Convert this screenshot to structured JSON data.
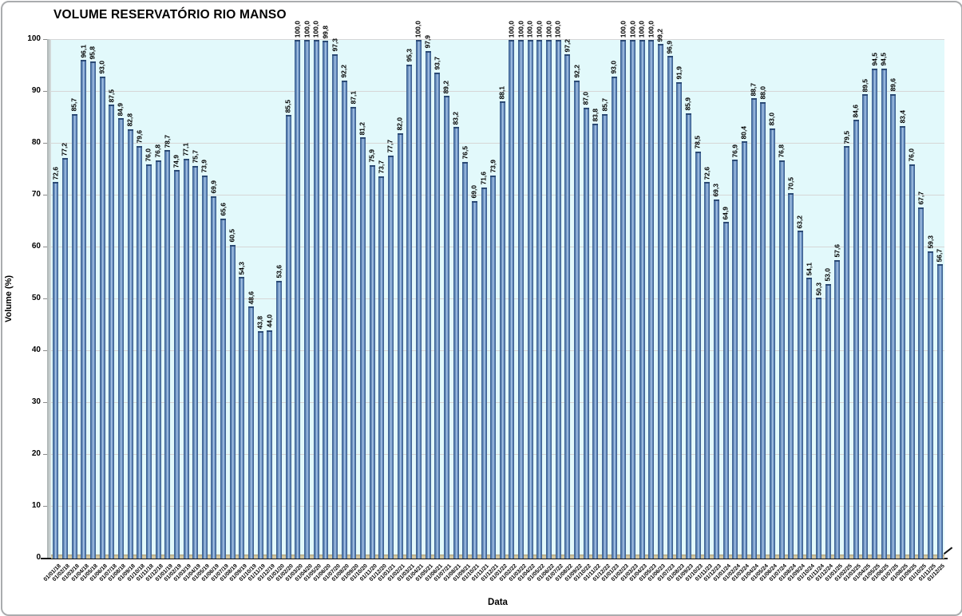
{
  "title": "VOLUME RESERVATÓRIO RIO MANSO",
  "colors": {
    "plot_background": "#e2f9fb",
    "gridline": "#d6d6d6",
    "bar_edge": "#2f4e7a",
    "bar_body": "#5b83b6",
    "bar_highlight": "#b9d2ee",
    "floor": "#cfc49e",
    "wall": "#c4cbcb",
    "axis": "#151515",
    "text": "#000000"
  },
  "chart_data": {
    "type": "bar",
    "title": "VOLUME RESERVATÓRIO RIO MANSO",
    "xlabel": "Data",
    "ylabel": "Volume (%)",
    "ylim": [
      0,
      100
    ],
    "y_ticks": [
      0,
      10,
      20,
      30,
      40,
      50,
      60,
      70,
      80,
      90,
      100
    ],
    "grid": true,
    "legend": "none",
    "value_labels": "rotated-90-above-bars",
    "decimal_separator": ",",
    "categories": [
      "01/01/18",
      "01/02/18",
      "01/03/18",
      "01/04/18",
      "01/05/18",
      "01/06/18",
      "01/07/18",
      "01/08/18",
      "01/09/18",
      "01/10/18",
      "01/11/18",
      "01/12/18",
      "01/01/19",
      "01/02/19",
      "01/03/19",
      "01/04/19",
      "01/05/19",
      "01/06/19",
      "01/07/19",
      "01/08/19",
      "01/09/19",
      "01/10/19",
      "01/11/19",
      "01/12/19",
      "01/01/20",
      "01/02/20",
      "01/03/20",
      "01/04/20",
      "01/05/20",
      "01/06/20",
      "01/07/20",
      "01/08/20",
      "01/09/20",
      "01/10/20",
      "01/11/20",
      "01/12/20",
      "01/01/21",
      "01/02/21",
      "01/03/21",
      "01/04/21",
      "01/05/21",
      "01/06/21",
      "01/07/21",
      "01/08/21",
      "01/09/21",
      "01/10/21",
      "01/11/21",
      "01/12/21",
      "01/01/22",
      "01/02/22",
      "01/03/22",
      "01/04/22",
      "01/05/22",
      "01/06/22",
      "01/07/22",
      "01/08/22",
      "01/09/22",
      "01/10/22",
      "01/11/22",
      "01/12/22",
      "01/01/23",
      "01/02/23",
      "01/03/23",
      "01/04/23",
      "01/05/23",
      "01/06/23",
      "01/07/23",
      "01/08/23",
      "01/09/23",
      "01/10/23",
      "01/11/23",
      "01/12/23",
      "01/01/24",
      "01/02/24",
      "01/03/24",
      "01/04/24",
      "01/05/24",
      "01/06/24",
      "01/07/24",
      "01/08/24",
      "01/09/24",
      "01/10/24",
      "01/11/24",
      "01/12/24",
      "01/01/25",
      "01/02/25",
      "01/03/25",
      "01/04/25",
      "01/05/25",
      "01/06/25",
      "01/07/25",
      "01/08/25",
      "01/09/25",
      "01/10/25",
      "01/11/25",
      "01/12/25"
    ],
    "values": [
      72.6,
      77.2,
      85.7,
      96.1,
      95.8,
      93.0,
      87.5,
      84.9,
      82.8,
      79.6,
      76.0,
      76.8,
      78.7,
      74.9,
      77.1,
      75.7,
      73.9,
      69.9,
      65.6,
      60.5,
      54.3,
      48.6,
      43.8,
      44.0,
      53.6,
      85.5,
      100.0,
      100.0,
      100.0,
      99.8,
      97.3,
      92.2,
      87.1,
      81.2,
      75.9,
      73.7,
      77.7,
      82.0,
      95.3,
      100.0,
      97.9,
      93.7,
      89.2,
      83.2,
      76.5,
      69.0,
      71.6,
      73.9,
      88.1,
      100.0,
      100.0,
      100.0,
      100.0,
      100.0,
      100.0,
      97.2,
      92.2,
      87.0,
      83.8,
      85.7,
      93.0,
      100.0,
      100.0,
      100.0,
      100.0,
      99.2,
      96.9,
      91.9,
      85.9,
      78.5,
      72.6,
      69.3,
      64.9,
      76.9,
      80.4,
      88.7,
      88.0,
      83.0,
      76.8,
      70.5,
      63.2,
      54.1,
      50.3,
      53.0,
      57.6,
      79.5,
      84.6,
      89.5,
      94.5,
      94.5,
      89.6,
      83.4,
      76.0,
      67.7,
      59.3,
      56.7
    ]
  }
}
